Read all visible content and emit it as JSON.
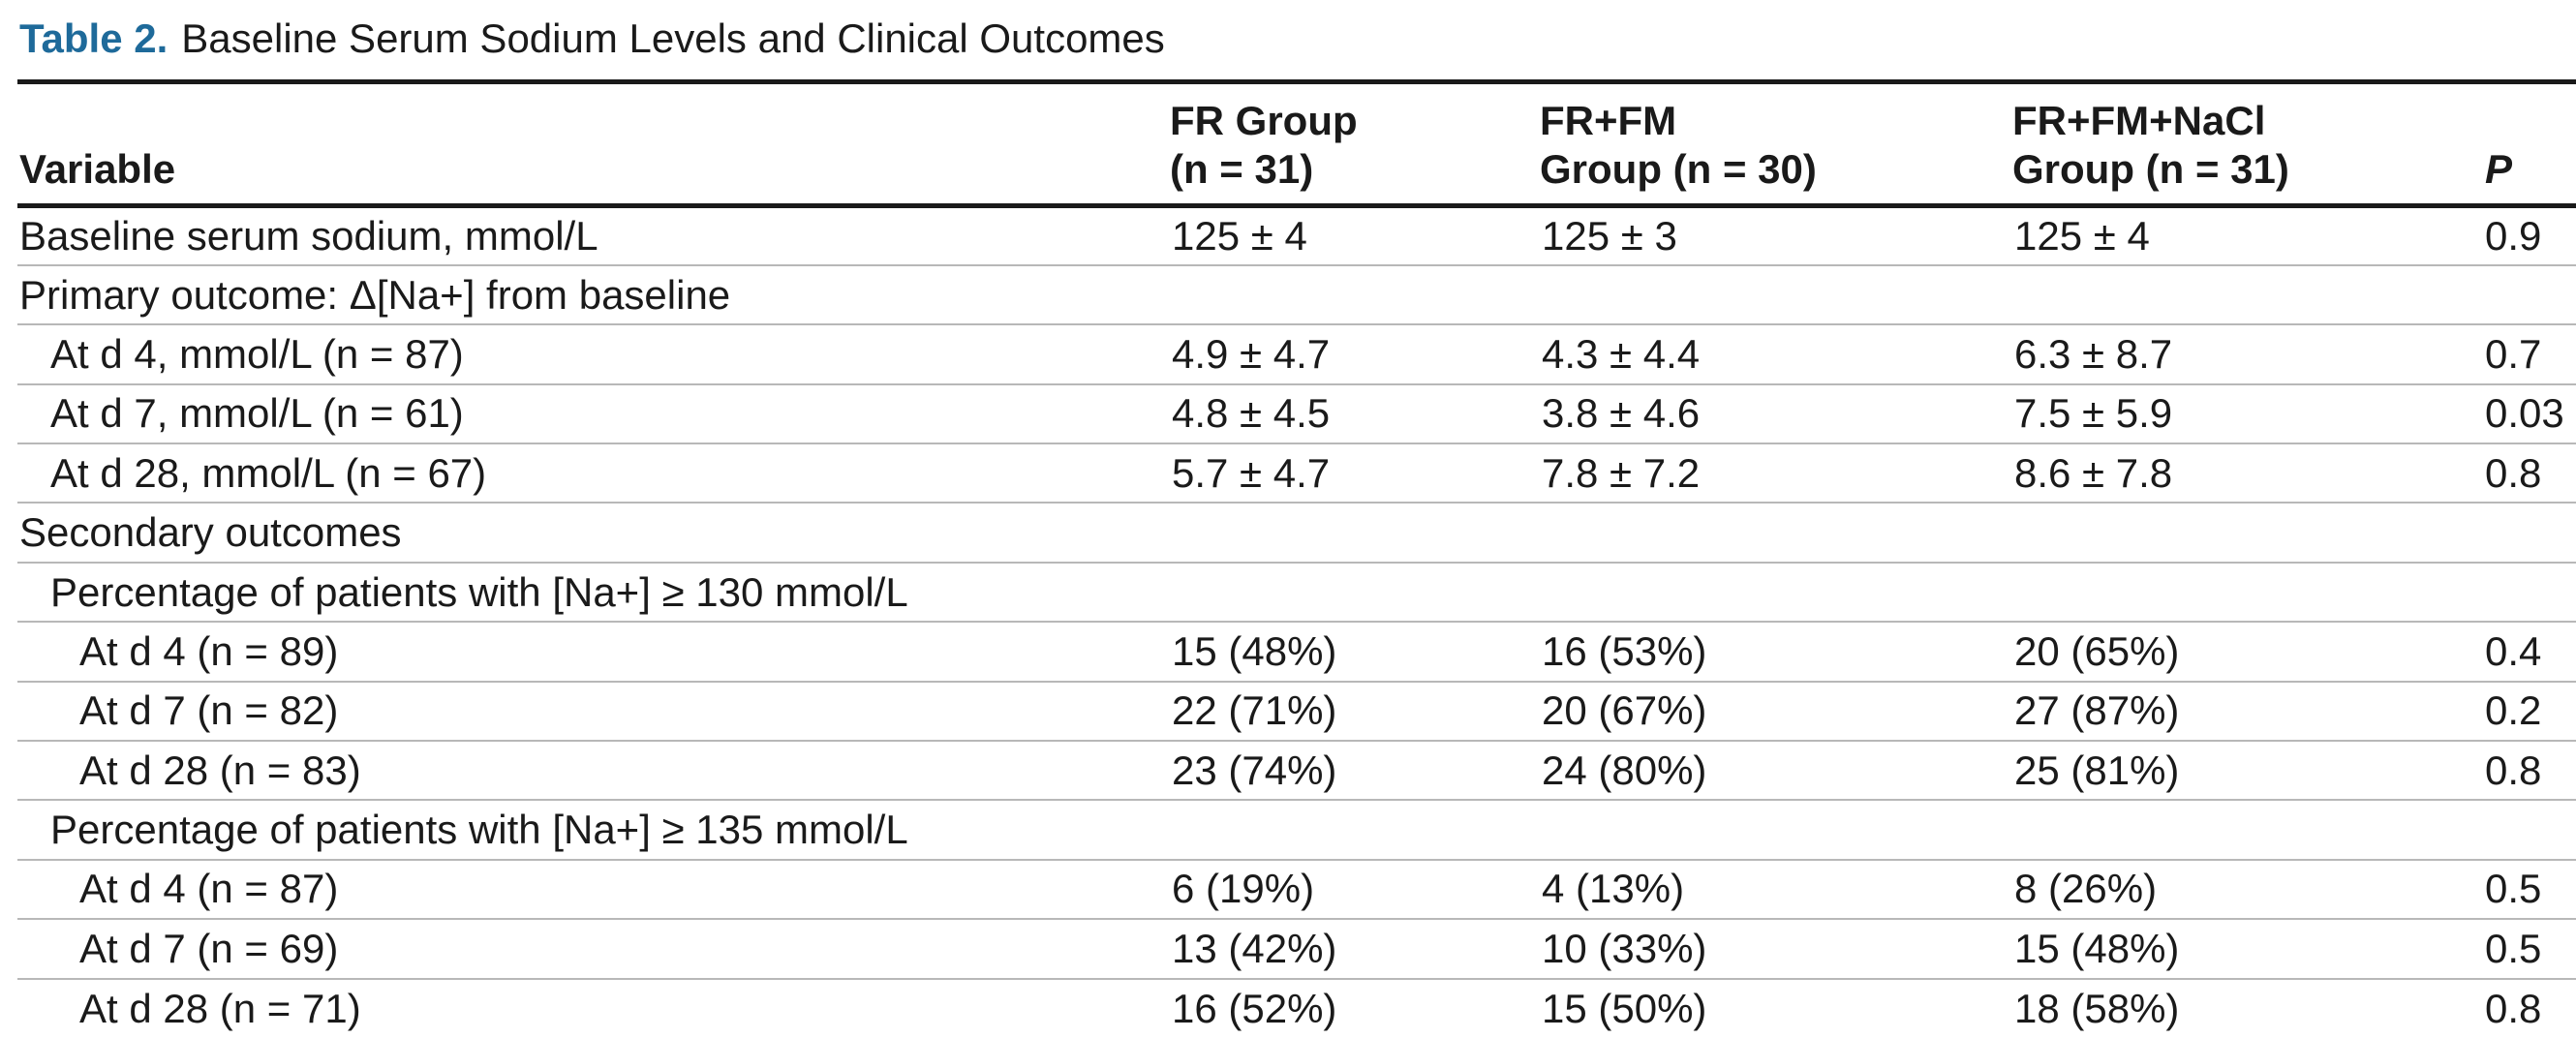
{
  "caption": {
    "label": "Table 2.",
    "title": "Baseline Serum Sodium Levels and Clinical Outcomes"
  },
  "columns": {
    "variable": "Variable",
    "fr_line1": "FR Group",
    "fr_line2": "(n = 31)",
    "frfm_line1": "FR+FM",
    "frfm_line2": "Group (n = 30)",
    "nacl_line1": "FR+FM+NaCl",
    "nacl_line2": "Group (n = 31)",
    "p": "P"
  },
  "rows": [
    {
      "indent": 0,
      "variable": "Baseline serum sodium, mmol/L",
      "fr": "125 ± 4",
      "frfm": "125 ± 3",
      "nacl": "125 ± 4",
      "p": "0.9"
    },
    {
      "indent": 0,
      "variable": "Primary outcome: Δ[Na+] from baseline",
      "fr": "",
      "frfm": "",
      "nacl": "",
      "p": ""
    },
    {
      "indent": 1,
      "variable": "At d 4, mmol/L (n = 87)",
      "fr": "4.9 ± 4.7",
      "frfm": "4.3 ± 4.4",
      "nacl": "6.3 ± 8.7",
      "p": "0.7"
    },
    {
      "indent": 1,
      "variable": "At d 7, mmol/L (n = 61)",
      "fr": "4.8 ± 4.5",
      "frfm": "3.8 ± 4.6",
      "nacl": "7.5 ± 5.9",
      "p": "0.03"
    },
    {
      "indent": 1,
      "variable": "At d 28, mmol/L (n = 67)",
      "fr": "5.7 ± 4.7",
      "frfm": "7.8 ± 7.2",
      "nacl": "8.6 ± 7.8",
      "p": "0.8"
    },
    {
      "indent": 0,
      "variable": "Secondary outcomes",
      "fr": "",
      "frfm": "",
      "nacl": "",
      "p": ""
    },
    {
      "indent": 1,
      "variable": "Percentage of patients with [Na+] ≥ 130 mmol/L",
      "fr": "",
      "frfm": "",
      "nacl": "",
      "p": ""
    },
    {
      "indent": 2,
      "variable": "At d 4 (n = 89)",
      "fr": "15 (48%)",
      "frfm": "16 (53%)",
      "nacl": "20 (65%)",
      "p": "0.4"
    },
    {
      "indent": 2,
      "variable": "At d 7 (n = 82)",
      "fr": "22 (71%)",
      "frfm": "20 (67%)",
      "nacl": "27 (87%)",
      "p": "0.2"
    },
    {
      "indent": 2,
      "variable": "At d 28 (n = 83)",
      "fr": "23 (74%)",
      "frfm": "24 (80%)",
      "nacl": "25 (81%)",
      "p": "0.8"
    },
    {
      "indent": 1,
      "variable": "Percentage of patients with [Na+] ≥ 135 mmol/L",
      "fr": "",
      "frfm": "",
      "nacl": "",
      "p": ""
    },
    {
      "indent": 2,
      "variable": "At d 4 (n = 87)",
      "fr": "6 (19%)",
      "frfm": "4 (13%)",
      "nacl": "8 (26%)",
      "p": "0.5"
    },
    {
      "indent": 2,
      "variable": "At d 7 (n = 69)",
      "fr": "13 (42%)",
      "frfm": "10 (33%)",
      "nacl": "15 (48%)",
      "p": "0.5"
    },
    {
      "indent": 2,
      "variable": "At d 28 (n = 71)",
      "fr": "16 (52%)",
      "frfm": "15 (50%)",
      "nacl": "18 (58%)",
      "p": "0.8"
    }
  ],
  "colors": {
    "caption_label": "#1e6a9a",
    "text": "#1a1a1a",
    "rule": "#1a1a1a",
    "row_divider": "#b8b8b8"
  }
}
